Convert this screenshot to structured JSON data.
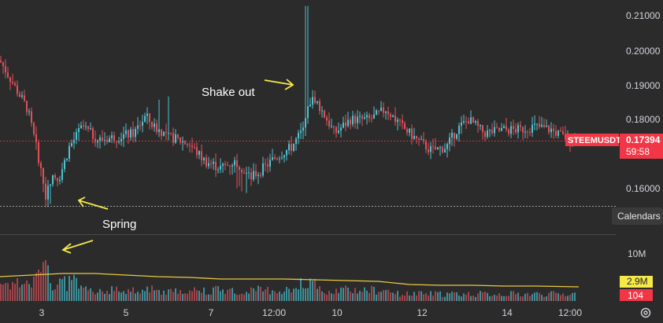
{
  "colors": {
    "background": "#2b2b2b",
    "up": "#4fc3d0",
    "down": "#e0505a",
    "text": "#d1d4dc",
    "annotation": "#f5e94a",
    "volume_ma": "#e9c841",
    "price_tag": "#f23645",
    "grid_divider": "#4a4a4a"
  },
  "price_axis": {
    "ticks": [
      "0.21000",
      "0.20000",
      "0.19000",
      "0.18000",
      "0.16000"
    ]
  },
  "time_axis": {
    "ticks": [
      "3",
      "5",
      "7",
      "12:00",
      "10",
      "12",
      "14",
      "12:00"
    ]
  },
  "price_tag": {
    "symbol": "STEEMUSDT",
    "price": "0.17394",
    "countdown": "59:58"
  },
  "calendars_label": "Calendars",
  "annotations": {
    "shakeout": "Shake out",
    "spring": "Spring"
  },
  "volume_axis": {
    "tick": "10M",
    "ma_value": "2.9M",
    "last_volume": "104"
  },
  "chart_data": {
    "type": "candlestick",
    "price_range": [
      0.153,
      0.213
    ],
    "current_price": 0.17394,
    "support_level": 0.1556,
    "last_candle": {
      "close": 0.17394
    },
    "key_points": [
      {
        "label": "Spring",
        "low": 0.1556
      },
      {
        "label": "Shake out",
        "high": 0.2128
      }
    ],
    "volume": {
      "max_tick": "10M",
      "ma": "2.9M"
    }
  }
}
